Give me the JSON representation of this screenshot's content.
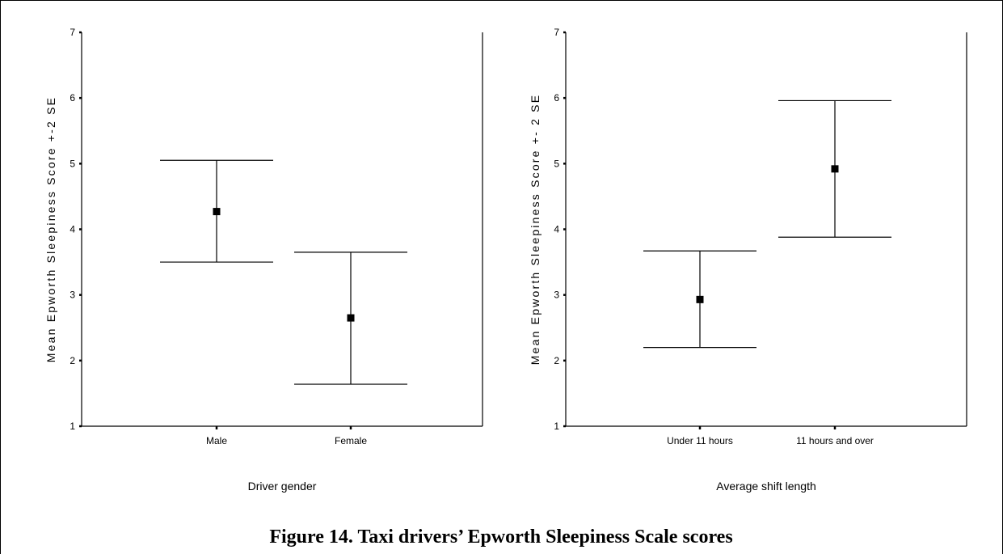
{
  "caption": "Figure 14.  Taxi drivers’ Epworth Sleepiness Scale scores",
  "chart_data": [
    {
      "type": "errorbar",
      "xlabel": "Driver gender",
      "ylabel": "Mean Epworth Sleepiness Score +-2 SE",
      "ylim": [
        1,
        7
      ],
      "yticks": [
        "1",
        "2",
        "3",
        "4",
        "5",
        "6",
        "7"
      ],
      "categories": [
        "Male",
        "Female"
      ],
      "values": [
        4.27,
        2.65
      ],
      "lower": [
        3.5,
        1.64
      ],
      "upper": [
        5.05,
        3.65
      ]
    },
    {
      "type": "errorbar",
      "xlabel": "Average shift length",
      "ylabel": "Mean Epworth Sleepiness Score +- 2 SE",
      "ylim": [
        1,
        7
      ],
      "yticks": [
        "1",
        "2",
        "3",
        "4",
        "5",
        "6",
        "7"
      ],
      "categories": [
        "Under 11 hours",
        "11 hours and over"
      ],
      "values": [
        2.93,
        4.92
      ],
      "lower": [
        2.2,
        3.88
      ],
      "upper": [
        3.67,
        5.96
      ]
    }
  ]
}
